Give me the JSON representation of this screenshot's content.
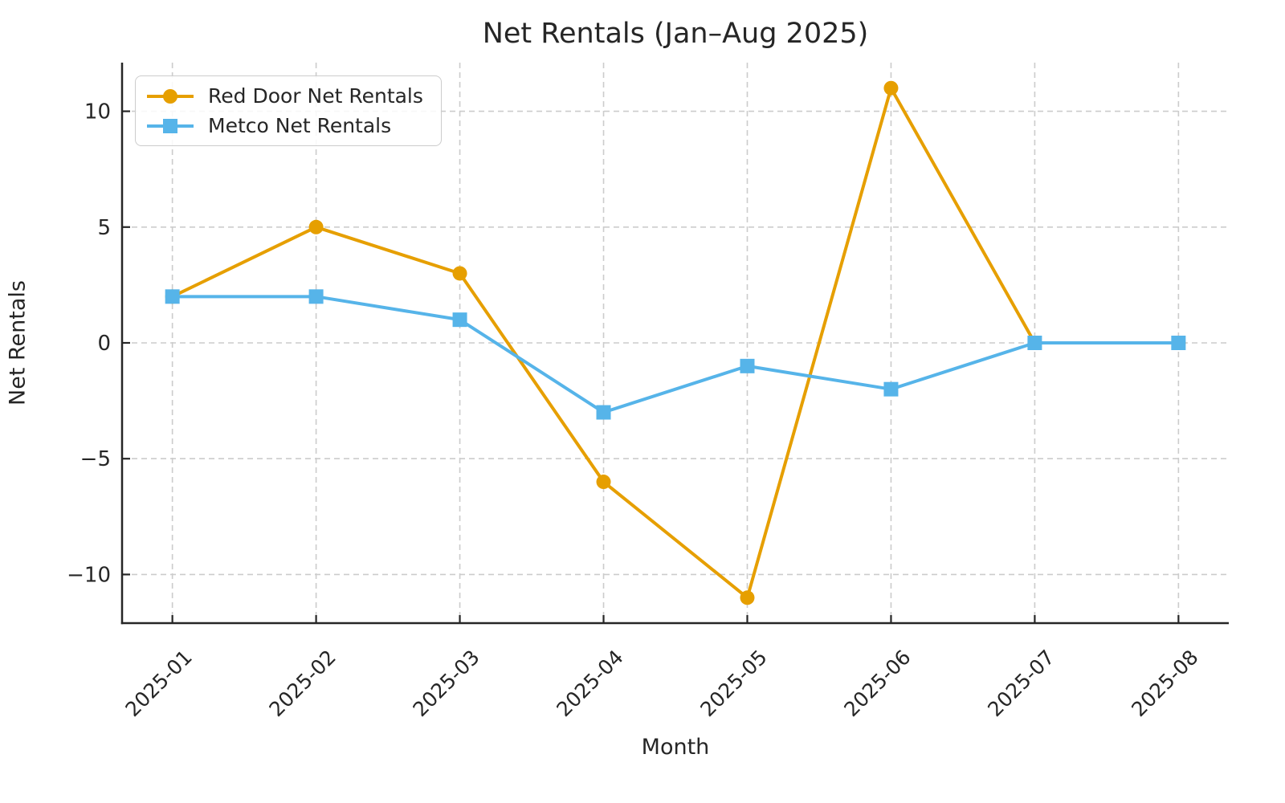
{
  "chart_data": {
    "type": "line",
    "title": "Net Rentals (Jan–Aug 2025)",
    "xlabel": "Month",
    "ylabel": "Net Rentals",
    "categories": [
      "2025-01",
      "2025-02",
      "2025-03",
      "2025-04",
      "2025-05",
      "2025-06",
      "2025-07",
      "2025-08"
    ],
    "series": [
      {
        "name": "Red Door Net Rentals",
        "values": [
          2,
          5,
          3,
          -6,
          -11,
          11,
          0,
          0
        ],
        "color": "#E69F00",
        "marker": "circle"
      },
      {
        "name": "Metco Net Rentals",
        "values": [
          2,
          2,
          1,
          -3,
          -1,
          -2,
          0,
          0
        ],
        "color": "#56B4E9",
        "marker": "square"
      }
    ],
    "yticks": [
      -10,
      -5,
      0,
      5,
      10
    ],
    "ylim": [
      -12.1,
      12.1
    ],
    "grid": true,
    "grid_style": "dashed",
    "legend_position": "upper left",
    "x_tick_rotation_deg": 45,
    "colors": {
      "text": "#262626",
      "spine": "#262626",
      "grid": "#cccccc",
      "background": "#ffffff"
    }
  }
}
